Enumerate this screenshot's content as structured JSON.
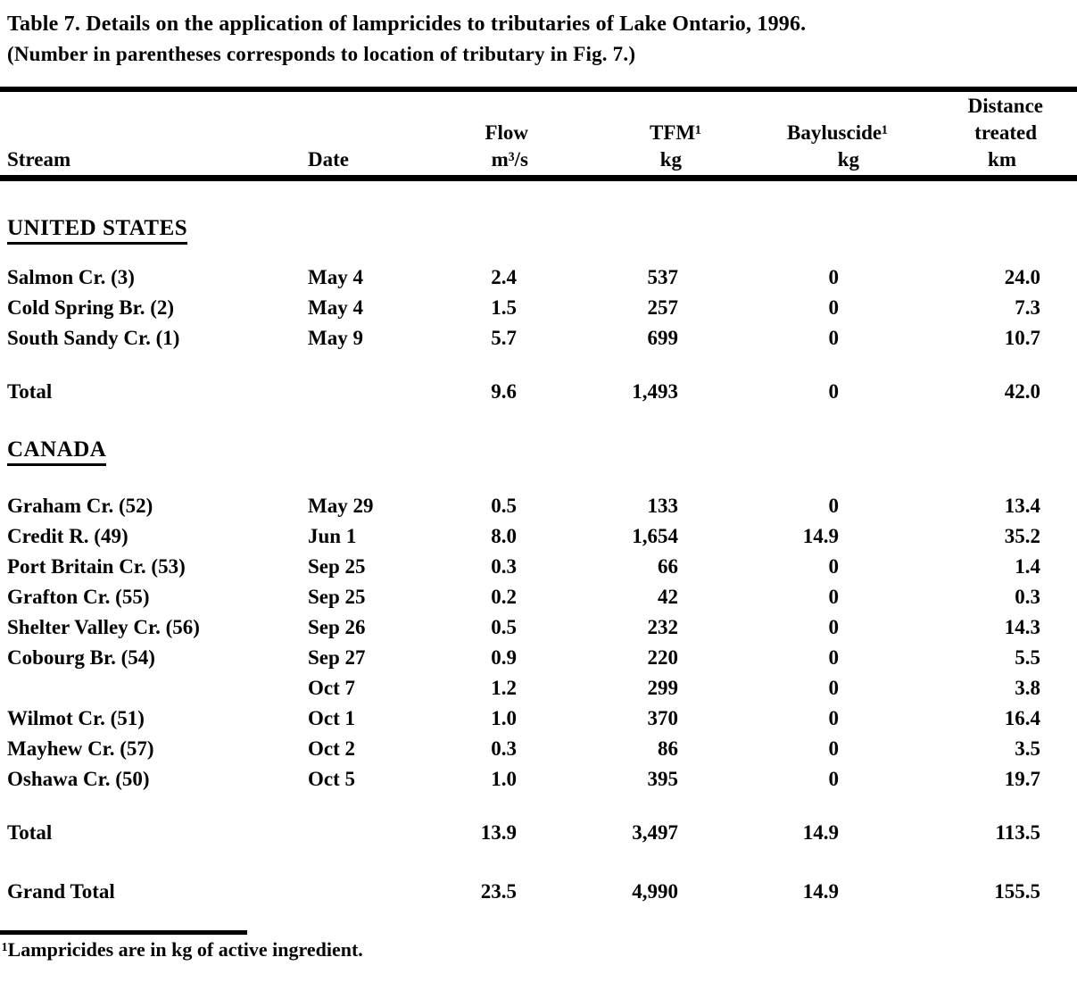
{
  "title": "Table 7.  Details on the application of lampricides to tributaries of Lake Ontario, 1996.",
  "subtitle": "(Number in parentheses corresponds to location of tributary in Fig. 7.)",
  "footnote": "¹Lampricides are in kg of active ingredient.",
  "table": {
    "headers": {
      "stream": "Stream",
      "date": "Date",
      "flow": [
        "Flow",
        "m³/s"
      ],
      "tfm": [
        "TFM¹",
        "kg"
      ],
      "bayluscide": [
        "Bayluscide¹",
        "kg"
      ],
      "distance": [
        "Distance",
        "treated",
        "km"
      ]
    },
    "sections": [
      {
        "heading": "UNITED STATES",
        "rows": [
          {
            "stream": "Salmon Cr. (3)",
            "date": "May 4",
            "flow": "2.4",
            "tfm": "537",
            "bayluscide": "0",
            "distance": "24.0"
          },
          {
            "stream": "Cold Spring Br. (2)",
            "date": "May 4",
            "flow": "1.5",
            "tfm": "257",
            "bayluscide": "0",
            "distance": "7.3"
          },
          {
            "stream": "South Sandy Cr. (1)",
            "date": "May 9",
            "flow": "5.7",
            "tfm": "699",
            "bayluscide": "0",
            "distance": "10.7"
          }
        ],
        "total": {
          "stream": "Total",
          "date": "",
          "flow": "9.6",
          "tfm": "1,493",
          "bayluscide": "0",
          "distance": "42.0"
        }
      },
      {
        "heading": "CANADA",
        "rows": [
          {
            "stream": "Graham Cr. (52)",
            "date": "May 29",
            "flow": "0.5",
            "tfm": "133",
            "bayluscide": "0",
            "distance": "13.4"
          },
          {
            "stream": "Credit R. (49)",
            "date": "Jun 1",
            "flow": "8.0",
            "tfm": "1,654",
            "bayluscide": "14.9",
            "distance": "35.2"
          },
          {
            "stream": "Port Britain Cr. (53)",
            "date": "Sep 25",
            "flow": "0.3",
            "tfm": "66",
            "bayluscide": "0",
            "distance": "1.4"
          },
          {
            "stream": "Grafton Cr. (55)",
            "date": "Sep 25",
            "flow": "0.2",
            "tfm": "42",
            "bayluscide": "0",
            "distance": "0.3"
          },
          {
            "stream": "Shelter Valley Cr. (56)",
            "date": "Sep 26",
            "flow": "0.5",
            "tfm": "232",
            "bayluscide": "0",
            "distance": "14.3"
          },
          {
            "stream": "Cobourg Br. (54)",
            "date": "Sep 27",
            "flow": "0.9",
            "tfm": "220",
            "bayluscide": "0",
            "distance": "5.5"
          },
          {
            "stream": "",
            "date": "Oct 7",
            "flow": "1.2",
            "tfm": "299",
            "bayluscide": "0",
            "distance": "3.8"
          },
          {
            "stream": "Wilmot Cr. (51)",
            "date": "Oct 1",
            "flow": "1.0",
            "tfm": "370",
            "bayluscide": "0",
            "distance": "16.4"
          },
          {
            "stream": "Mayhew Cr. (57)",
            "date": "Oct 2",
            "flow": "0.3",
            "tfm": "86",
            "bayluscide": "0",
            "distance": "3.5"
          },
          {
            "stream": "Oshawa Cr. (50)",
            "date": "Oct 5",
            "flow": "1.0",
            "tfm": "395",
            "bayluscide": "0",
            "distance": "19.7"
          }
        ],
        "total": {
          "stream": "Total",
          "date": "",
          "flow": "13.9",
          "tfm": "3,497",
          "bayluscide": "14.9",
          "distance": "113.5"
        }
      }
    ],
    "grand_total": {
      "stream": "Grand Total",
      "date": "",
      "flow": "23.5",
      "tfm": "4,990",
      "bayluscide": "14.9",
      "distance": "155.5"
    }
  }
}
